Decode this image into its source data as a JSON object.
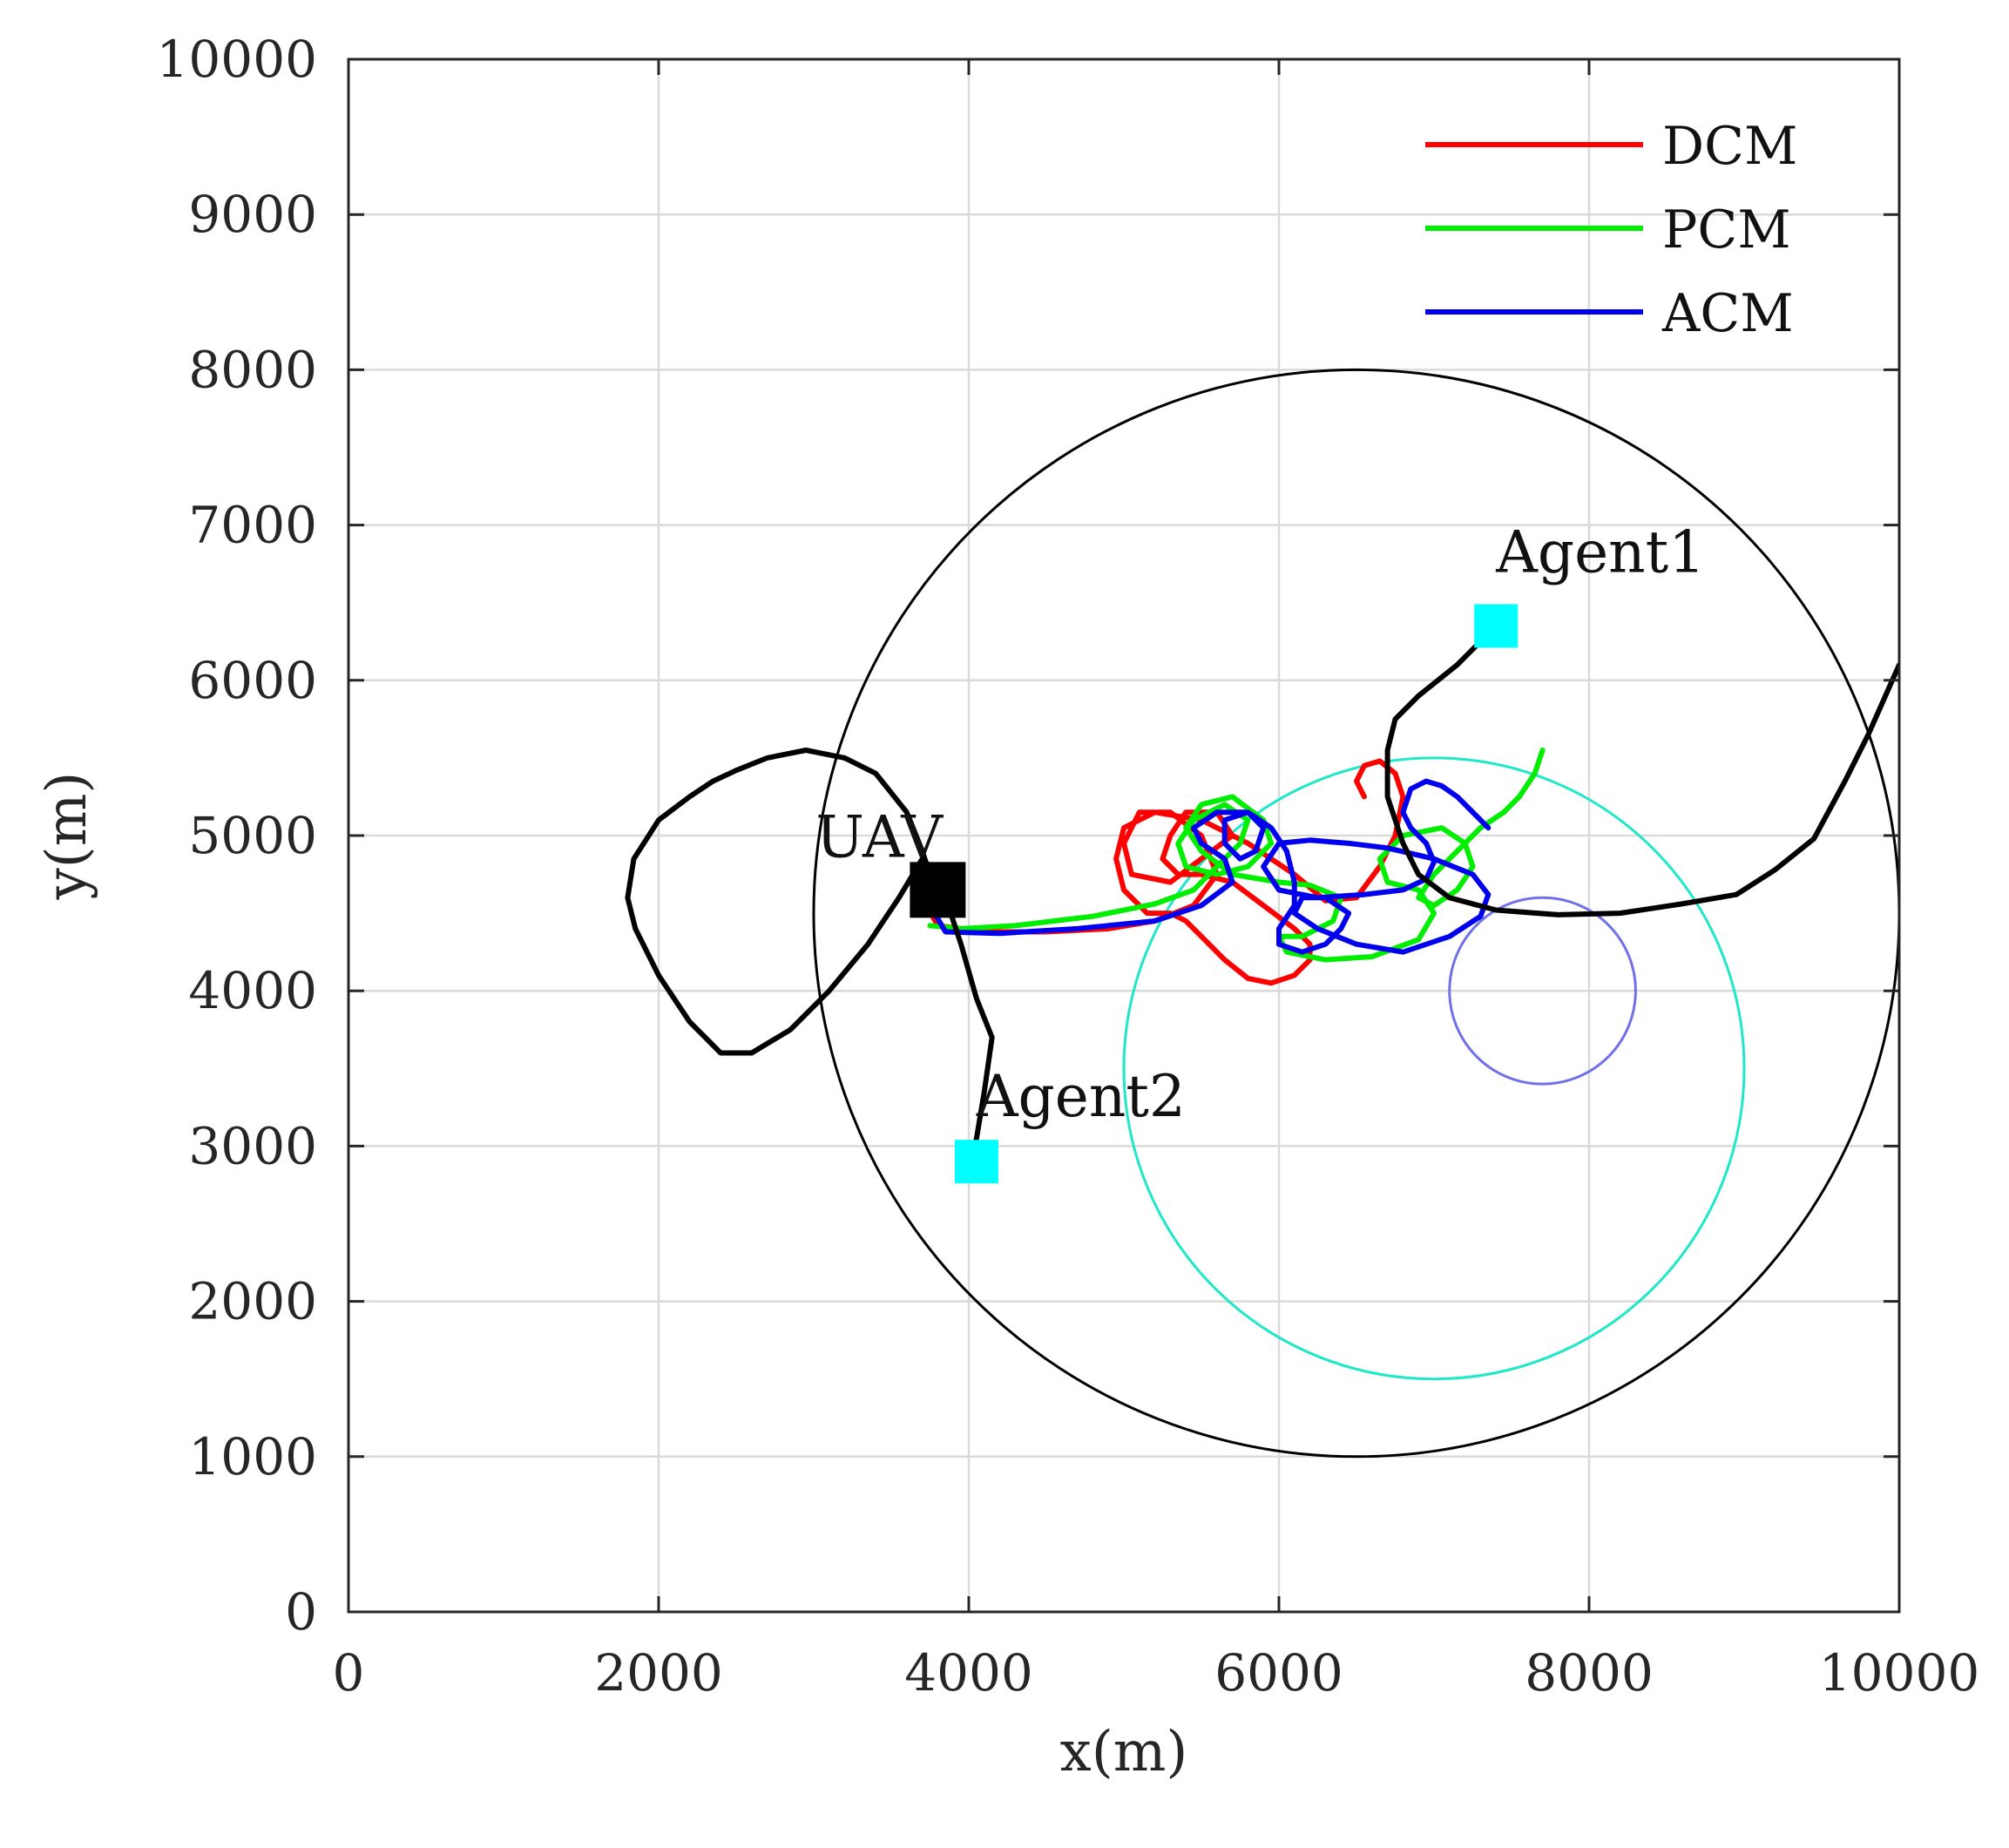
{
  "chart_data": {
    "type": "line",
    "title": "",
    "xlabel": "x(m)",
    "ylabel": "y(m)",
    "xlim": [
      0,
      10000
    ],
    "ylim": [
      0,
      10000
    ],
    "xticks": [
      "0",
      "2000",
      "4000",
      "6000",
      "8000",
      "10000"
    ],
    "yticks": [
      "0",
      "1000",
      "2000",
      "3000",
      "4000",
      "5000",
      "6000",
      "7000",
      "8000",
      "9000",
      "10000"
    ],
    "grid": true,
    "legend_position": "top-right",
    "legend": [
      {
        "label": "DCM",
        "color": "#ff0000"
      },
      {
        "label": "PCM",
        "color": "#00ee00"
      },
      {
        "label": "ACM",
        "color": "#0000ee"
      }
    ],
    "series": [
      {
        "name": "DCM",
        "color": "#ff0000",
        "x": [
          3700,
          3800,
          4100,
          4500,
          4900,
          5200,
          5450,
          5600,
          5500,
          5300,
          5100,
          5000,
          5050,
          5300,
          5500,
          5700,
          5600,
          5400,
          5300,
          5250,
          5350,
          5500,
          5700,
          5900,
          6100,
          6200,
          6200,
          6100,
          5950,
          5800,
          5650,
          5500,
          5400,
          5300,
          5150,
          5000,
          4950,
          5000,
          5200,
          5500,
          5800,
          6100,
          6300,
          6500,
          6650,
          6750,
          6800,
          6750,
          6650,
          6550,
          6500,
          6550
        ],
        "y": [
          4600,
          4420,
          4380,
          4380,
          4400,
          4450,
          4550,
          4750,
          5000,
          5150,
          5150,
          4950,
          4750,
          4700,
          4850,
          5000,
          5150,
          5150,
          5000,
          4850,
          4750,
          4750,
          4700,
          4550,
          4400,
          4300,
          4200,
          4100,
          4050,
          4080,
          4200,
          4350,
          4450,
          4500,
          4500,
          4650,
          4850,
          5050,
          5150,
          5100,
          4950,
          4750,
          4580,
          4600,
          4800,
          5000,
          5250,
          5400,
          5480,
          5450,
          5350,
          5250
        ]
      },
      {
        "name": "PCM",
        "color": "#00ee00",
        "x": [
          3750,
          3950,
          4300,
          4800,
          5200,
          5450,
          5600,
          5750,
          5800,
          5650,
          5450,
          5350,
          5400,
          5600,
          5800,
          5950,
          5900,
          5700,
          5500,
          5400,
          5500,
          5700,
          6000,
          6200,
          6400,
          6350,
          6150,
          6000,
          6050,
          6300,
          6600,
          6900,
          7000,
          6900,
          6700,
          6650,
          6800,
          7050,
          7200,
          7250,
          7150,
          7000,
          6900,
          7000,
          7150,
          7300,
          7450,
          7550,
          7650,
          7700
        ],
        "y": [
          4420,
          4400,
          4420,
          4480,
          4560,
          4650,
          4800,
          4950,
          5100,
          5200,
          5100,
          4950,
          4800,
          4750,
          4800,
          4950,
          5100,
          5250,
          5200,
          5050,
          4900,
          4750,
          4700,
          4680,
          4600,
          4450,
          4350,
          4350,
          4250,
          4200,
          4220,
          4330,
          4500,
          4650,
          4700,
          4850,
          5000,
          5050,
          4950,
          4800,
          4650,
          4550,
          4600,
          4750,
          4900,
          5050,
          5150,
          5250,
          5400,
          5550
        ]
      },
      {
        "name": "ACM",
        "color": "#0000ee",
        "x": [
          3750,
          3850,
          4200,
          4700,
          5200,
          5500,
          5700,
          5650,
          5500,
          5450,
          5600,
          5800,
          5900,
          5850,
          5750,
          5650,
          5650,
          5800,
          5950,
          6050,
          6100,
          6100,
          6000,
          6000,
          6150,
          6300,
          6400,
          6450,
          6300,
          6150,
          6100,
          6250,
          6500,
          6800,
          7100,
          7300,
          7350,
          7250,
          7000,
          6700,
          6450,
          6200,
          6000,
          5900,
          6000,
          6250,
          6550,
          6800,
          6950,
          7000,
          6950,
          6850,
          6800,
          6850,
          6950,
          7050,
          7150,
          7250,
          7350
        ],
        "y": [
          4550,
          4380,
          4370,
          4400,
          4450,
          4550,
          4700,
          4850,
          4950,
          5050,
          5150,
          5150,
          5050,
          4900,
          4850,
          4950,
          5100,
          5150,
          5050,
          4900,
          4700,
          4550,
          4400,
          4300,
          4250,
          4300,
          4400,
          4500,
          4600,
          4600,
          4500,
          4400,
          4300,
          4250,
          4350,
          4480,
          4620,
          4750,
          4850,
          4920,
          4950,
          4970,
          4950,
          4800,
          4650,
          4600,
          4620,
          4650,
          4720,
          4830,
          4950,
          5050,
          5150,
          5300,
          5350,
          5320,
          5250,
          5150,
          5050
        ]
      },
      {
        "name": "UAV path",
        "color": "#000000",
        "x": [
          3800,
          3700,
          3600,
          3400,
          3200,
          2950,
          2700,
          2500,
          2350,
          2200,
          2000,
          1840,
          1800,
          1850,
          2000,
          2200,
          2400,
          2600,
          2850,
          3100,
          3350,
          3550,
          3700,
          3800,
          3850,
          3950,
          4050,
          4150,
          4100,
          4050,
          4000
        ],
        "y": [
          4600,
          4900,
          5150,
          5400,
          5500,
          5550,
          5500,
          5420,
          5350,
          5250,
          5100,
          4850,
          4600,
          4400,
          4100,
          3800,
          3600,
          3600,
          3750,
          4000,
          4300,
          4600,
          4850,
          4750,
          4600,
          4300,
          3950,
          3700,
          3350,
          3050,
          2850
        ]
      },
      {
        "name": "Agent1 path",
        "color": "#000000",
        "x": [
          7400,
          7150,
          6900,
          6750,
          6700,
          6700,
          6800,
          6900,
          7100,
          7400,
          7800,
          8200,
          8600,
          8950,
          9200,
          9450,
          9650,
          9800,
          10000
        ],
        "y": [
          6350,
          6100,
          5900,
          5750,
          5550,
          5250,
          4950,
          4750,
          4600,
          4520,
          4490,
          4500,
          4560,
          4620,
          4780,
          4980,
          5350,
          5650,
          6100
        ]
      }
    ],
    "circles": [
      {
        "cx": 6500,
        "cy": 4500,
        "r": 3500,
        "color": "#000000"
      },
      {
        "cx": 7000,
        "cy": 3500,
        "r": 2000,
        "color": "#1ee8c8"
      },
      {
        "cx": 7700,
        "cy": 4000,
        "r": 600,
        "color": "#7070e8"
      }
    ],
    "markers": [
      {
        "label": "UAV",
        "x": 3800,
        "y": 4650,
        "color": "#000000"
      },
      {
        "label": "Agent1",
        "x": 7400,
        "y": 6350,
        "color": "#00ffff"
      },
      {
        "label": "Agent2",
        "x": 4050,
        "y": 2900,
        "color": "#00ffff"
      }
    ]
  }
}
